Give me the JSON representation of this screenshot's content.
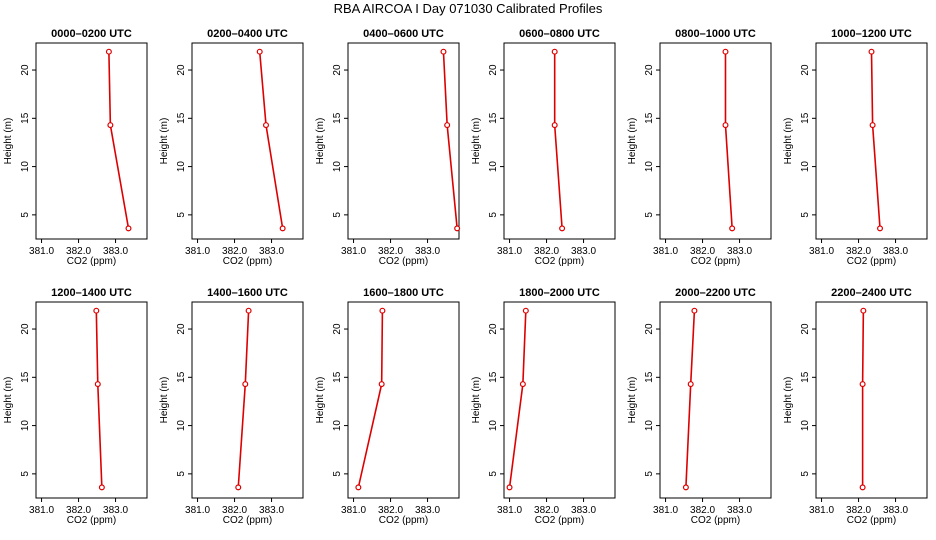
{
  "title": "RBA AIRCOA I  Day 071030  Calibrated Profiles",
  "colors": {
    "series": "#dd0000",
    "axis": "#000000",
    "background": "#ffffff"
  },
  "chart_data": [
    {
      "type": "line",
      "title": "0000–0200 UTC",
      "xlabel": "CO2 (ppm)",
      "ylabel": "Height (m)",
      "xlim": [
        380.85,
        383.85
      ],
      "ylim": [
        2.5,
        22.8
      ],
      "xticks": [
        "381.0",
        "382.0",
        "383.0"
      ],
      "yticks": [
        "5",
        "10",
        "15",
        "20"
      ],
      "x": [
        382.82,
        382.86,
        383.35
      ],
      "y": [
        21.9,
        14.3,
        3.6
      ],
      "grid": false
    },
    {
      "type": "line",
      "title": "0200–0400 UTC",
      "xlabel": "CO2 (ppm)",
      "ylabel": "Height (m)",
      "xlim": [
        380.85,
        383.85
      ],
      "ylim": [
        2.5,
        22.8
      ],
      "xticks": [
        "381.0",
        "382.0",
        "383.0"
      ],
      "yticks": [
        "5",
        "10",
        "15",
        "20"
      ],
      "x": [
        382.68,
        382.85,
        383.3
      ],
      "y": [
        21.9,
        14.3,
        3.6
      ],
      "grid": false
    },
    {
      "type": "line",
      "title": "0400–0600 UTC",
      "xlabel": "CO2 (ppm)",
      "ylabel": "Height (m)",
      "xlim": [
        380.85,
        383.85
      ],
      "ylim": [
        2.5,
        22.8
      ],
      "xticks": [
        "381.0",
        "382.0",
        "383.0"
      ],
      "yticks": [
        "5",
        "10",
        "15",
        "20"
      ],
      "x": [
        383.43,
        383.53,
        383.8
      ],
      "y": [
        21.9,
        14.3,
        3.6
      ],
      "grid": false
    },
    {
      "type": "line",
      "title": "0600–0800 UTC",
      "xlabel": "CO2 (ppm)",
      "ylabel": "Height (m)",
      "xlim": [
        380.85,
        383.85
      ],
      "ylim": [
        2.5,
        22.8
      ],
      "xticks": [
        "381.0",
        "382.0",
        "383.0"
      ],
      "yticks": [
        "5",
        "10",
        "15",
        "20"
      ],
      "x": [
        382.22,
        382.22,
        382.42
      ],
      "y": [
        21.9,
        14.3,
        3.6
      ],
      "grid": false
    },
    {
      "type": "line",
      "title": "0800–1000 UTC",
      "xlabel": "CO2 (ppm)",
      "ylabel": "Height (m)",
      "xlim": [
        380.85,
        383.85
      ],
      "ylim": [
        2.5,
        22.8
      ],
      "xticks": [
        "381.0",
        "382.0",
        "383.0"
      ],
      "yticks": [
        "5",
        "10",
        "15",
        "20"
      ],
      "x": [
        382.62,
        382.62,
        382.8
      ],
      "y": [
        21.9,
        14.3,
        3.6
      ],
      "grid": false
    },
    {
      "type": "line",
      "title": "1000–1200 UTC",
      "xlabel": "CO2 (ppm)",
      "ylabel": "Height (m)",
      "xlim": [
        380.85,
        383.85
      ],
      "ylim": [
        2.5,
        22.8
      ],
      "xticks": [
        "381.0",
        "382.0",
        "383.0"
      ],
      "yticks": [
        "5",
        "10",
        "15",
        "20"
      ],
      "x": [
        382.35,
        382.38,
        382.58
      ],
      "y": [
        21.9,
        14.3,
        3.6
      ],
      "grid": false
    },
    {
      "type": "line",
      "title": "1200–1400 UTC",
      "xlabel": "CO2 (ppm)",
      "ylabel": "Height (m)",
      "xlim": [
        380.85,
        383.85
      ],
      "ylim": [
        2.5,
        22.8
      ],
      "xticks": [
        "381.0",
        "382.0",
        "383.0"
      ],
      "yticks": [
        "5",
        "10",
        "15",
        "20"
      ],
      "x": [
        382.48,
        382.52,
        382.63
      ],
      "y": [
        21.9,
        14.3,
        3.6
      ],
      "grid": false
    },
    {
      "type": "line",
      "title": "1400–1600 UTC",
      "xlabel": "CO2 (ppm)",
      "ylabel": "Height (m)",
      "xlim": [
        380.85,
        383.85
      ],
      "ylim": [
        2.5,
        22.8
      ],
      "xticks": [
        "381.0",
        "382.0",
        "383.0"
      ],
      "yticks": [
        "5",
        "10",
        "15",
        "20"
      ],
      "x": [
        382.38,
        382.29,
        382.1
      ],
      "y": [
        21.9,
        14.3,
        3.6
      ],
      "grid": false
    },
    {
      "type": "line",
      "title": "1600–1800 UTC",
      "xlabel": "CO2 (ppm)",
      "ylabel": "Height (m)",
      "xlim": [
        380.85,
        383.85
      ],
      "ylim": [
        2.5,
        22.8
      ],
      "xticks": [
        "381.0",
        "382.0",
        "383.0"
      ],
      "yticks": [
        "5",
        "10",
        "15",
        "20"
      ],
      "x": [
        381.78,
        381.76,
        381.13
      ],
      "y": [
        21.9,
        14.3,
        3.6
      ],
      "grid": false
    },
    {
      "type": "line",
      "title": "1800–2000 UTC",
      "xlabel": "CO2 (ppm)",
      "ylabel": "Height (m)",
      "xlim": [
        380.85,
        383.85
      ],
      "ylim": [
        2.5,
        22.8
      ],
      "xticks": [
        "381.0",
        "382.0",
        "383.0"
      ],
      "yticks": [
        "5",
        "10",
        "15",
        "20"
      ],
      "x": [
        381.44,
        381.36,
        381.0
      ],
      "y": [
        21.9,
        14.3,
        3.6
      ],
      "grid": false
    },
    {
      "type": "line",
      "title": "2000–2200 UTC",
      "xlabel": "CO2 (ppm)",
      "ylabel": "Height (m)",
      "xlim": [
        380.85,
        383.85
      ],
      "ylim": [
        2.5,
        22.8
      ],
      "xticks": [
        "381.0",
        "382.0",
        "383.0"
      ],
      "yticks": [
        "5",
        "10",
        "15",
        "20"
      ],
      "x": [
        381.78,
        381.68,
        381.55
      ],
      "y": [
        21.9,
        14.3,
        3.6
      ],
      "grid": false
    },
    {
      "type": "line",
      "title": "2200–2400 UTC",
      "xlabel": "CO2 (ppm)",
      "ylabel": "Height (m)",
      "xlim": [
        380.85,
        383.85
      ],
      "ylim": [
        2.5,
        22.8
      ],
      "xticks": [
        "381.0",
        "382.0",
        "383.0"
      ],
      "yticks": [
        "5",
        "10",
        "15",
        "20"
      ],
      "x": [
        382.13,
        382.11,
        382.11
      ],
      "y": [
        21.9,
        14.3,
        3.6
      ],
      "grid": false
    }
  ]
}
